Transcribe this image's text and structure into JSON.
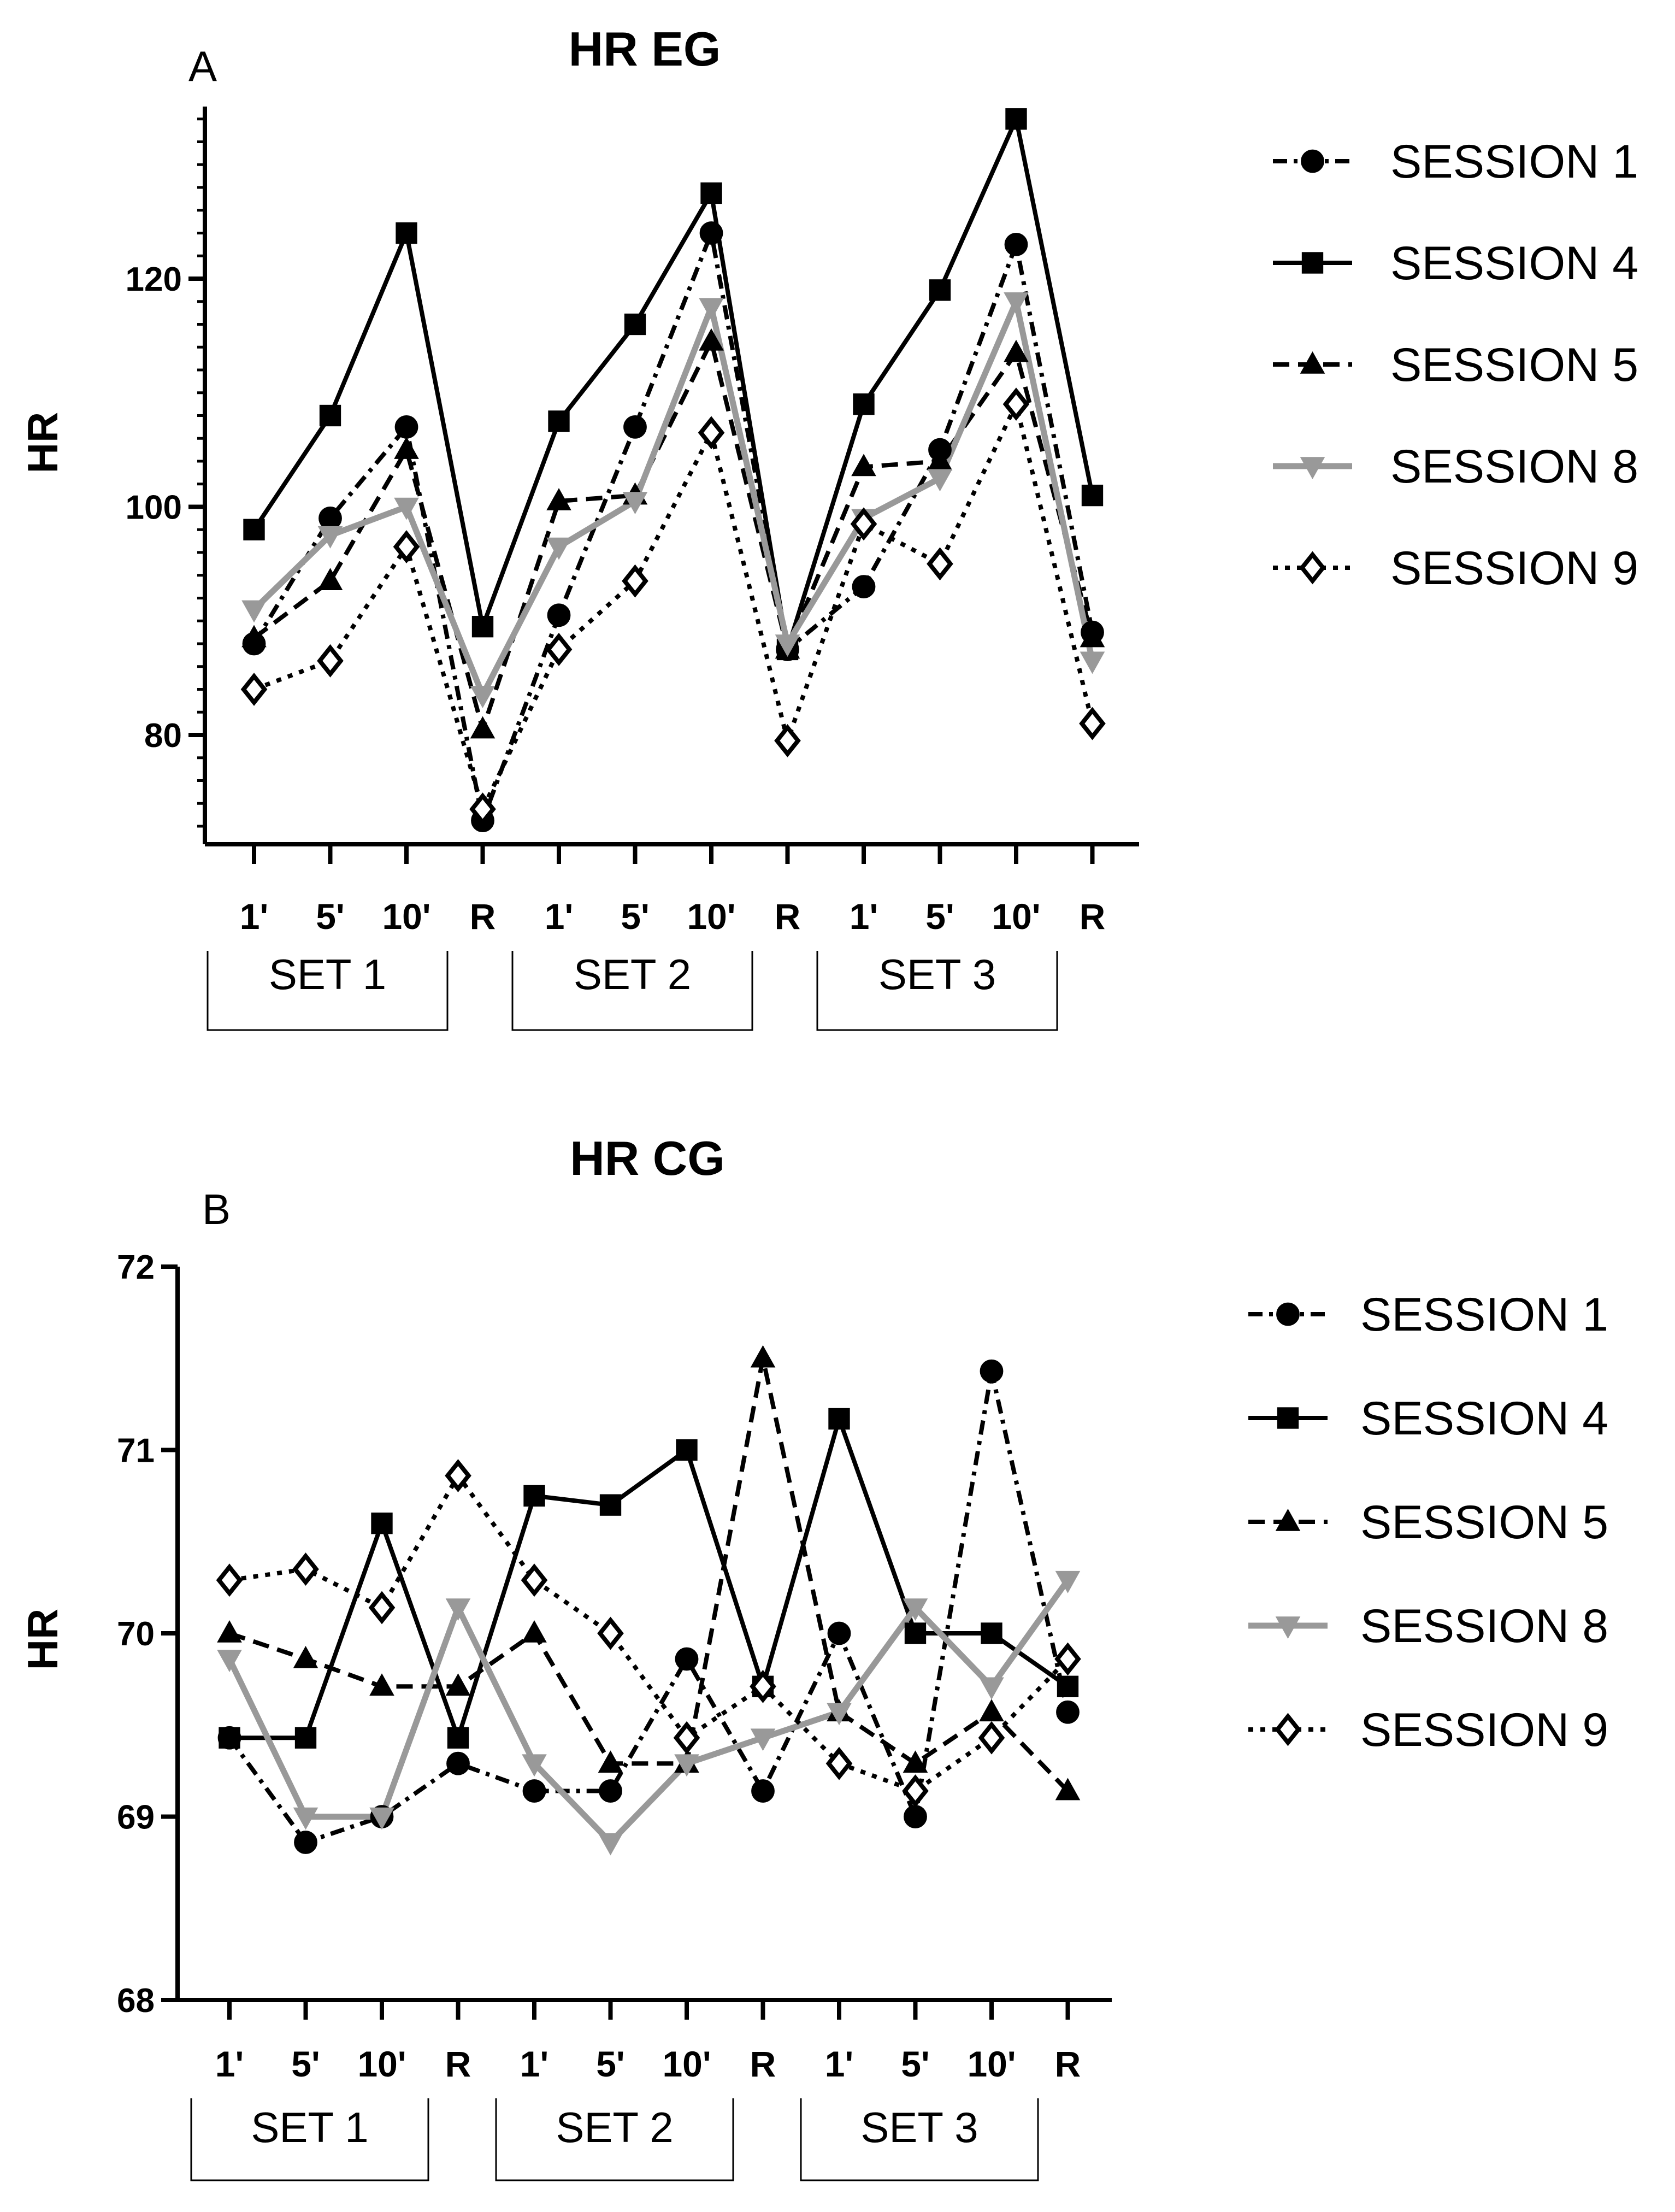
{
  "figure": {
    "panels": [
      {
        "title": "HR EG",
        "letter": "A"
      },
      {
        "title": "HR CG",
        "letter": "B"
      }
    ]
  },
  "chart_data": [
    {
      "type": "line",
      "title": "HR EG",
      "panel_letter": "A",
      "ylabel": "HR",
      "xlabel": "",
      "ylim": [
        70,
        135
      ],
      "yticks": [
        80,
        100,
        120
      ],
      "categories": [
        "1'",
        "5'",
        "10'",
        "R",
        "1'",
        "5'",
        "10'",
        "R",
        "1'",
        "5'",
        "10'",
        "R"
      ],
      "groups": [
        "SET 1",
        "SET 2",
        "SET 3"
      ],
      "series": [
        {
          "name": "SESSION 1",
          "style": "dashdot",
          "marker": "circle",
          "color": "#000000",
          "values": [
            88,
            99,
            107,
            72.5,
            90.5,
            107,
            124,
            87.5,
            93,
            105,
            123,
            89
          ]
        },
        {
          "name": "SESSION 4",
          "style": "solid",
          "marker": "square",
          "color": "#000000",
          "values": [
            98,
            108,
            124,
            89.5,
            107.5,
            116,
            127.5,
            87.5,
            109,
            119,
            134,
            101
          ]
        },
        {
          "name": "SESSION 5",
          "style": "dashed",
          "marker": "triangle-up",
          "color": "#000000",
          "values": [
            88.5,
            93.5,
            105,
            80.5,
            100.5,
            101,
            114.5,
            87.5,
            103.5,
            104,
            113.5,
            88.5
          ]
        },
        {
          "name": "SESSION 8",
          "style": "solid",
          "marker": "triangle-down",
          "color": "#999999",
          "values": [
            91,
            97.5,
            100,
            83.5,
            96.5,
            100.5,
            117.5,
            88,
            99,
            102.5,
            118,
            86.5
          ]
        },
        {
          "name": "SESSION 9",
          "style": "dotted",
          "marker": "diamond-open",
          "color": "#000000",
          "values": [
            84,
            86.5,
            96.5,
            73.5,
            87.5,
            93.5,
            106.5,
            79.5,
            98.5,
            95,
            109,
            81
          ]
        }
      ]
    },
    {
      "type": "line",
      "title": "HR CG",
      "panel_letter": "B",
      "ylabel": "HR",
      "xlabel": "",
      "ylim": [
        68,
        72
      ],
      "yticks": [
        68,
        69,
        70,
        71,
        72
      ],
      "categories": [
        "1'",
        "5'",
        "10'",
        "R",
        "1'",
        "5'",
        "10'",
        "R",
        "1'",
        "5'",
        "10'",
        "R"
      ],
      "groups": [
        "SET 1",
        "SET 2",
        "SET 3"
      ],
      "series": [
        {
          "name": "SESSION 1",
          "style": "dashdot",
          "marker": "circle",
          "color": "#000000",
          "values": [
            69.43,
            68.86,
            69,
            69.29,
            69.14,
            69.14,
            69.86,
            69.14,
            70,
            69,
            71.43,
            69.57
          ]
        },
        {
          "name": "SESSION 4",
          "style": "solid",
          "marker": "square",
          "color": "#000000",
          "values": [
            69.43,
            69.43,
            70.6,
            69.43,
            70.75,
            70.7,
            71,
            69.71,
            71.17,
            70,
            70,
            69.71
          ]
        },
        {
          "name": "SESSION 5",
          "style": "dashed",
          "marker": "triangle-up",
          "color": "#000000",
          "values": [
            70,
            69.86,
            69.71,
            69.71,
            70,
            69.29,
            69.29,
            71.5,
            69.57,
            69.29,
            69.57,
            69.14
          ]
        },
        {
          "name": "SESSION 8",
          "style": "solid",
          "marker": "triangle-down",
          "color": "#999999",
          "values": [
            69.86,
            69,
            69,
            70.14,
            69.29,
            68.86,
            69.29,
            69.43,
            69.57,
            70.14,
            69.71,
            70.29
          ]
        },
        {
          "name": "SESSION 9",
          "style": "dotted",
          "marker": "diamond-open",
          "color": "#000000",
          "values": [
            70.29,
            70.35,
            70.14,
            70.86,
            70.29,
            70,
            69.43,
            69.71,
            69.29,
            69.14,
            69.43,
            69.86
          ]
        }
      ]
    }
  ]
}
